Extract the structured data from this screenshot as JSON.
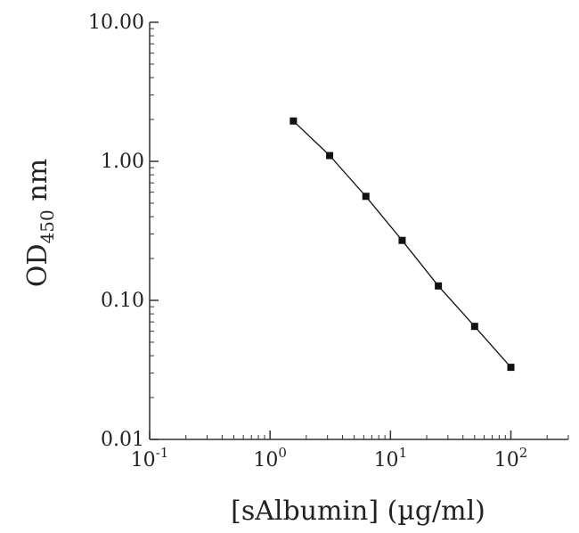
{
  "chart_data": {
    "type": "line",
    "xlabel": "[sAlbumin] (µg/ml)",
    "ylabel": {
      "main": "OD",
      "subscript": "450",
      "unit": " nm"
    },
    "x_scale": "log",
    "y_scale": "log",
    "xlim": [
      0.1,
      300
    ],
    "ylim": [
      0.01,
      10
    ],
    "grid": false,
    "legend": "none",
    "x_ticks": [
      {
        "value": 0.1,
        "base": "10",
        "exp": "-1"
      },
      {
        "value": 1,
        "base": "10",
        "exp": "0"
      },
      {
        "value": 10,
        "base": "10",
        "exp": "1"
      },
      {
        "value": 100,
        "base": "10",
        "exp": "2"
      }
    ],
    "y_ticks": [
      {
        "value": 0.01,
        "label": "0.01"
      },
      {
        "value": 0.1,
        "label": "0.10"
      },
      {
        "value": 1,
        "label": "1.00"
      },
      {
        "value": 10,
        "label": "10.00"
      }
    ],
    "series": [
      {
        "x": [
          1.5625,
          3.125,
          6.25,
          12.5,
          25,
          50,
          100
        ],
        "y": [
          1.95,
          1.1,
          0.56,
          0.27,
          0.127,
          0.065,
          0.033
        ],
        "color": "#111111",
        "marker": "square"
      }
    ]
  }
}
